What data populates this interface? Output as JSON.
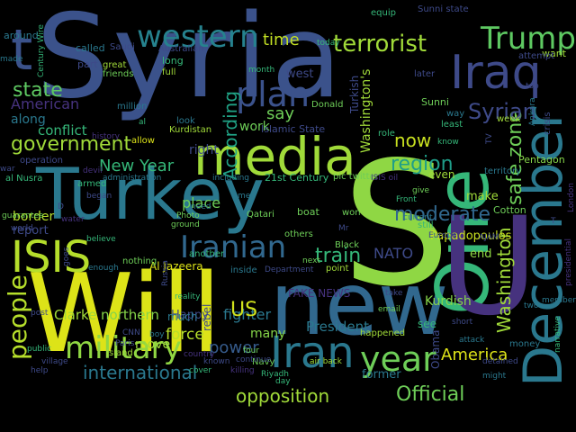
{
  "palette": {
    "background": "#000000",
    "dark_purple": "#46327e",
    "blue": "#365c8d",
    "steel_blue": "#3b528b",
    "teal": "#277f8e",
    "sea_green": "#1fa187",
    "green": "#4ac16d",
    "lime": "#a0da39",
    "yellow": "#dde318"
  },
  "words": [
    {
      "text": "Syria",
      "color": "#3b528b"
    },
    {
      "text": "S",
      "color": "#8fd744"
    },
    {
      "text": "Will",
      "color": "#dde318"
    },
    {
      "text": "Turkey",
      "color": "#2a788e"
    },
    {
      "text": "new",
      "color": "#31688e"
    },
    {
      "text": "One",
      "color": "#35b779"
    },
    {
      "text": "U",
      "color": "#46327e"
    },
    {
      "text": "December",
      "color": "#2a788e"
    },
    {
      "text": "media",
      "color": "#a0da39"
    },
    {
      "text": "Iraq",
      "color": "#3e4a89"
    },
    {
      "text": "Trump",
      "color": "#5ec962"
    },
    {
      "text": "western",
      "color": "#26828e"
    },
    {
      "text": "terrorist",
      "color": "#a0da39"
    },
    {
      "text": "t",
      "color": "#3b528b"
    },
    {
      "text": "ISIS",
      "color": "#b5de2b"
    },
    {
      "text": "Iranian",
      "color": "#31688e"
    },
    {
      "text": "military",
      "color": "#90d743"
    },
    {
      "text": "Iran",
      "color": "#2a788e"
    },
    {
      "text": "year",
      "color": "#6ece58"
    },
    {
      "text": "plan",
      "color": "#3b528b"
    },
    {
      "text": "people",
      "color": "#b5de2b"
    },
    {
      "text": "government",
      "color": "#a0da39"
    },
    {
      "text": "state",
      "color": "#5ec962"
    },
    {
      "text": "American",
      "color": "#46327e"
    },
    {
      "text": "time",
      "color": "#c2df23"
    },
    {
      "text": "say",
      "color": "#6ece58"
    },
    {
      "text": "New Year",
      "color": "#35b779"
    },
    {
      "text": "According",
      "color": "#20a386"
    },
    {
      "text": "region",
      "color": "#1f9e89"
    },
    {
      "text": "now",
      "color": "#c8e020"
    },
    {
      "text": "safe zone",
      "color": "#6ece58"
    },
    {
      "text": "Syrian",
      "color": "#3e4a89"
    },
    {
      "text": "train",
      "color": "#35b779"
    },
    {
      "text": "moderate",
      "color": "#31688e"
    },
    {
      "text": "NATO",
      "color": "#3e4a89"
    },
    {
      "text": "Washington",
      "color": "#a0da39"
    },
    {
      "text": "Kurdish",
      "color": "#86d549"
    },
    {
      "text": "President",
      "color": "#2a788e"
    },
    {
      "text": "America",
      "color": "#dde318"
    },
    {
      "text": "Official",
      "color": "#6ece58"
    },
    {
      "text": "international",
      "color": "#2a788e"
    },
    {
      "text": "opposition",
      "color": "#a0da39"
    },
    {
      "text": "Clarke",
      "color": "#a0da39"
    },
    {
      "text": "northern",
      "color": "#86d549"
    },
    {
      "text": "Happy",
      "color": "#3e4a89"
    },
    {
      "text": "fighter",
      "color": "#2a788e"
    },
    {
      "text": "force",
      "color": "#b5de2b"
    },
    {
      "text": "power",
      "color": "#365c8d"
    },
    {
      "text": "US",
      "color": "#d0e11c"
    },
    {
      "text": "many",
      "color": "#86d549"
    },
    {
      "text": "much",
      "color": "#2a788e"
    },
    {
      "text": "move",
      "color": "#a0da39"
    },
    {
      "text": "border",
      "color": "#b5de2b"
    },
    {
      "text": "report",
      "color": "#3e4a89"
    },
    {
      "text": "place",
      "color": "#6ece58"
    },
    {
      "text": "right",
      "color": "#3e4a89"
    },
    {
      "text": "work",
      "color": "#6ece58"
    },
    {
      "text": "conflict",
      "color": "#35b779"
    },
    {
      "text": "along",
      "color": "#2a788e"
    },
    {
      "text": "west",
      "color": "#3e4a89"
    },
    {
      "text": "Turkish",
      "color": "#3e4a89"
    },
    {
      "text": "Washington's",
      "color": "#a0da39"
    },
    {
      "text": "even",
      "color": "#a0da39"
    },
    {
      "text": "make",
      "color": "#a0da39"
    },
    {
      "text": "Cotton",
      "color": "#6ece58"
    },
    {
      "text": "Papadopoulos",
      "color": "#c8e020"
    },
    {
      "text": "end",
      "color": "#90d743"
    },
    {
      "text": "Al Jazeera",
      "color": "#dde318"
    },
    {
      "text": "FAKE NEWS",
      "color": "#46327e"
    },
    {
      "text": "Obama",
      "color": "#3e4a89"
    },
    {
      "text": "former",
      "color": "#2a788e"
    },
    {
      "text": "see",
      "color": "#35b779"
    },
    {
      "text": "rebel",
      "color": "#3e4a89"
    },
    {
      "text": "nothing",
      "color": "#6ece58"
    },
    {
      "text": "around",
      "color": "#2a788e"
    },
    {
      "text": "called",
      "color": "#2a788e"
    },
    {
      "text": "Saudi",
      "color": "#3e4a89"
    },
    {
      "text": "Australian",
      "color": "#3e4a89"
    },
    {
      "text": "equip",
      "color": "#35b779"
    },
    {
      "text": "Sunni state",
      "color": "#3e4a89"
    },
    {
      "text": "want",
      "color": "#a0da39"
    },
    {
      "text": "attempt",
      "color": "#3e4a89"
    },
    {
      "text": "later",
      "color": "#3e4a89"
    },
    {
      "text": "today",
      "color": "#35b779"
    },
    {
      "text": "month",
      "color": "#35b779"
    },
    {
      "text": "Islamic State",
      "color": "#3e4a89"
    },
    {
      "text": "Donald",
      "color": "#6ece58"
    },
    {
      "text": "Sunni",
      "color": "#6ece58"
    },
    {
      "text": "week",
      "color": "#a0da39"
    },
    {
      "text": "way",
      "color": "#2a788e"
    },
    {
      "text": "least",
      "color": "#35b779"
    },
    {
      "text": "role",
      "color": "#35b779"
    },
    {
      "text": "crisis",
      "color": "#3e4a89"
    },
    {
      "text": "Ankara",
      "color": "#2a788e"
    },
    {
      "text": "Pentagon",
      "color": "#86d549"
    },
    {
      "text": "territory",
      "color": "#2a788e"
    },
    {
      "text": "London",
      "color": "#46327e"
    },
    {
      "text": "Kurdistan",
      "color": "#a0da39"
    },
    {
      "text": "history",
      "color": "#46327e"
    },
    {
      "text": "allow",
      "color": "#dde318"
    },
    {
      "text": "operation",
      "color": "#3e4a89"
    },
    {
      "text": "al Nusra",
      "color": "#35b779"
    },
    {
      "text": "devil",
      "color": "#46327e"
    },
    {
      "text": "armed",
      "color": "#35b779"
    },
    {
      "text": "administration",
      "color": "#2a788e"
    },
    {
      "text": "including",
      "color": "#2a788e"
    },
    {
      "text": "21st Century",
      "color": "#35b779"
    },
    {
      "text": "pic twitter",
      "color": "#6ece58"
    },
    {
      "text": "ISIS oil",
      "color": "#46327e"
    },
    {
      "text": "Photo",
      "color": "#6ece58"
    },
    {
      "text": "ground",
      "color": "#6ece58"
    },
    {
      "text": "Qatari",
      "color": "#6ece58"
    },
    {
      "text": "boat",
      "color": "#6ece58"
    },
    {
      "text": "won",
      "color": "#6ece58"
    },
    {
      "text": "guarantee",
      "color": "#6ece58"
    },
    {
      "text": "water",
      "color": "#46327e"
    },
    {
      "text": "believe",
      "color": "#35b779"
    },
    {
      "text": "others",
      "color": "#6ece58"
    },
    {
      "text": "Black",
      "color": "#6ece58"
    },
    {
      "text": "next",
      "color": "#6ece58"
    },
    {
      "text": "point",
      "color": "#a0da39"
    },
    {
      "text": "current",
      "color": "#2a788e"
    },
    {
      "text": "still",
      "color": "#35b779"
    },
    {
      "text": "Europe",
      "color": "#3e4a89"
    },
    {
      "text": "AJAM",
      "color": "#3e4a89"
    },
    {
      "text": "presidential",
      "color": "#46327e"
    },
    {
      "text": "narrative",
      "color": "#35b779"
    },
    {
      "text": "two",
      "color": "#2a788e"
    },
    {
      "text": "member",
      "color": "#2a788e"
    },
    {
      "text": "short",
      "color": "#3e4a89"
    },
    {
      "text": "attack",
      "color": "#2a788e"
    },
    {
      "text": "detained",
      "color": "#3e4a89"
    },
    {
      "text": "money",
      "color": "#2a788e"
    },
    {
      "text": "might",
      "color": "#2a788e"
    },
    {
      "text": "Navy",
      "color": "#6ece58"
    },
    {
      "text": "Riyadh",
      "color": "#35b779"
    },
    {
      "text": "air back",
      "color": "#a0da39"
    },
    {
      "text": "known",
      "color": "#3e4a89"
    },
    {
      "text": "continue",
      "color": "#3e4a89"
    },
    {
      "text": "killing",
      "color": "#46327e"
    },
    {
      "text": "Paris",
      "color": "#3e4a89"
    },
    {
      "text": "Island",
      "color": "#a0da39"
    },
    {
      "text": "CNN",
      "color": "#3e4a89"
    },
    {
      "text": "boy",
      "color": "#2a788e"
    },
    {
      "text": "village",
      "color": "#3e4a89"
    },
    {
      "text": "public",
      "color": "#35b779"
    },
    {
      "text": "post",
      "color": "#3e4a89"
    },
    {
      "text": "help",
      "color": "#3e4a89"
    },
    {
      "text": "cover",
      "color": "#35b779"
    },
    {
      "text": "email",
      "color": "#6ece58"
    },
    {
      "text": "happened",
      "color": "#a0da39"
    },
    {
      "text": "inside",
      "color": "#2a788e"
    },
    {
      "text": "Department",
      "color": "#3e4a89"
    },
    {
      "text": "take",
      "color": "#3e4a89"
    },
    {
      "text": "four",
      "color": "#6ece58"
    },
    {
      "text": "day",
      "color": "#35b779"
    },
    {
      "text": "another",
      "color": "#35b779"
    },
    {
      "text": "enough",
      "color": "#2a788e"
    },
    {
      "text": "goes",
      "color": "#3e4a89"
    },
    {
      "text": "reality",
      "color": "#35b779"
    },
    {
      "text": "Russia",
      "color": "#3e4a89"
    },
    {
      "text": "country",
      "color": "#46327e"
    },
    {
      "text": "look",
      "color": "#2a788e"
    },
    {
      "text": "al",
      "color": "#35b779"
    },
    {
      "text": "million",
      "color": "#2a788e"
    },
    {
      "text": "part",
      "color": "#3e4a89"
    },
    {
      "text": "friends",
      "color": "#6ece58"
    },
    {
      "text": "great",
      "color": "#a0da39"
    },
    {
      "text": "long",
      "color": "#35b779"
    },
    {
      "text": "full",
      "color": "#a0da39"
    },
    {
      "text": "made",
      "color": "#2a788e"
    },
    {
      "text": "Century Wire",
      "color": "#35b779"
    },
    {
      "text": "top",
      "color": "#3e4a89"
    },
    {
      "text": "TV",
      "color": "#3e4a89"
    },
    {
      "text": "know",
      "color": "#35b779"
    },
    {
      "text": "Mr",
      "color": "#3e4a89"
    },
    {
      "text": "war",
      "color": "#3e4a89"
    },
    {
      "text": "began",
      "color": "#3e4a89"
    },
    {
      "text": "men",
      "color": "#2a788e"
    },
    {
      "text": "Front",
      "color": "#35b779"
    },
    {
      "text": "give",
      "color": "#6ece58"
    },
    {
      "text": "world",
      "color": "#3e4a89"
    },
    {
      "text": "D",
      "color": "#3e4a89"
    },
    {
      "text": "T",
      "color": "#3e4a89"
    },
    {
      "text": "need",
      "color": "#2a788e"
    }
  ]
}
